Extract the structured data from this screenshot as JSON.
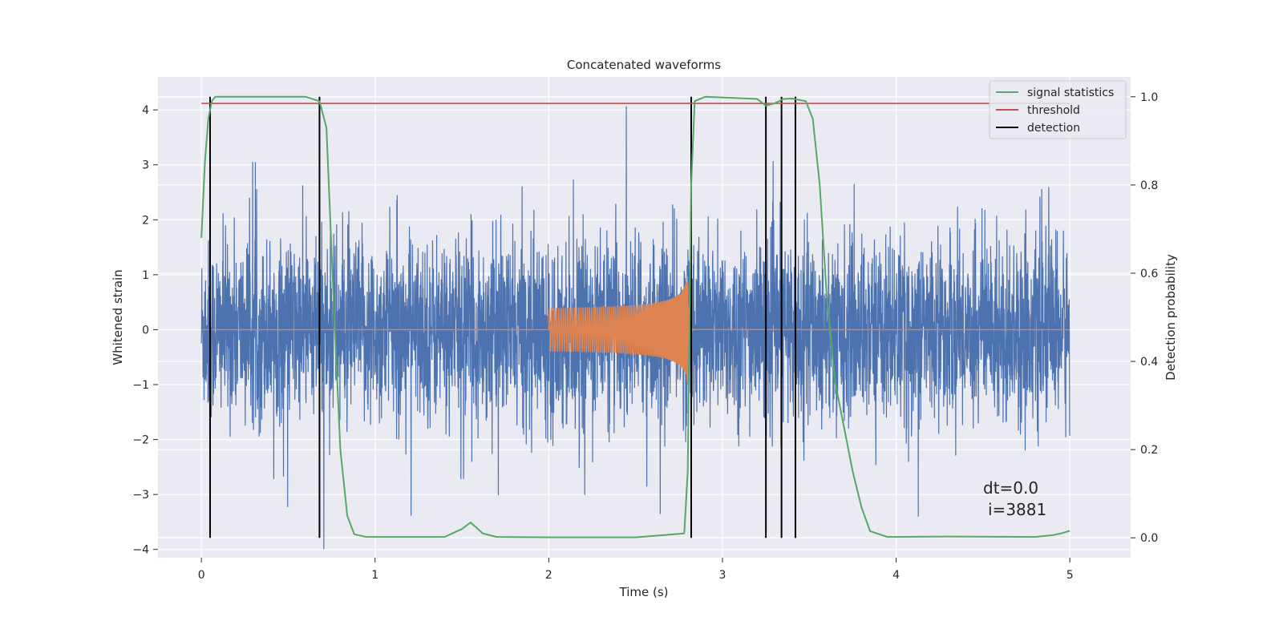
{
  "chart_data": {
    "type": "line",
    "title": "Concatenated waveforms",
    "xlabel": "Time (s)",
    "ylabel": "Whitened strain",
    "ylabel_right": "Detection probability",
    "xlim": [
      -0.25,
      5.35
    ],
    "ylim": [
      -4.15,
      4.6
    ],
    "ylim_right": [
      -0.045,
      1.045
    ],
    "x_ticks": [
      "0",
      "1",
      "2",
      "3",
      "4",
      "5"
    ],
    "y_ticks": [
      "−4",
      "−3",
      "−2",
      "−1",
      "0",
      "1",
      "2",
      "3",
      "4"
    ],
    "y_ticks_right": [
      "0.0",
      "0.2",
      "0.4",
      "0.6",
      "0.8",
      "1.0"
    ],
    "grid": true,
    "legend_position": "top-right",
    "series": [
      {
        "name": "signal statistics",
        "color": "#55a868",
        "axis": "right",
        "x": [
          0,
          0.02,
          0.04,
          0.06,
          0.08,
          0.12,
          0.3,
          0.6,
          0.68,
          0.72,
          0.76,
          0.8,
          0.84,
          0.88,
          0.95,
          1.4,
          1.5,
          1.55,
          1.62,
          1.7,
          2.0,
          2.5,
          2.78,
          2.8,
          2.82,
          2.84,
          2.9,
          3.2,
          3.25,
          3.3,
          3.35,
          3.4,
          3.48,
          3.52,
          3.56,
          3.6,
          3.65,
          3.7,
          3.75,
          3.8,
          3.85,
          3.95,
          4.3,
          4.8,
          4.9,
          4.95,
          5.0
        ],
        "y": [
          0.68,
          0.85,
          0.95,
          0.99,
          1.0,
          1.0,
          1.0,
          1.0,
          0.99,
          0.93,
          0.55,
          0.2,
          0.05,
          0.008,
          0.002,
          0.002,
          0.02,
          0.035,
          0.01,
          0.002,
          0.001,
          0.001,
          0.01,
          0.15,
          0.8,
          0.99,
          1.0,
          0.995,
          0.98,
          0.985,
          0.995,
          0.996,
          0.99,
          0.95,
          0.8,
          0.55,
          0.35,
          0.25,
          0.15,
          0.07,
          0.015,
          0.002,
          0.003,
          0.002,
          0.006,
          0.01,
          0.016
        ]
      },
      {
        "name": "threshold",
        "color": "#c44e52",
        "axis": "right",
        "x": [
          0,
          5
        ],
        "y": [
          0.985,
          0.985
        ]
      },
      {
        "name": "detection",
        "color": "#000000",
        "axis": "right",
        "x": [
          0.05,
          0.68,
          2.82,
          3.25,
          3.34,
          3.42
        ],
        "y_range": [
          0.0,
          1.0
        ]
      }
    ],
    "noise_series": {
      "color": "#4c72b0",
      "x_range": [
        0,
        5
      ],
      "amplitude_typical": 1.0,
      "amplitude_peak": 4.2
    },
    "chirp_series": {
      "color": "#dd8452",
      "x_start": 2.0,
      "x_merge": 2.8,
      "amplitude_start": 0.3,
      "amplitude_peak": 1.0
    },
    "annotation": {
      "line1": "dt=0.0",
      "line2": "i=3881"
    }
  }
}
